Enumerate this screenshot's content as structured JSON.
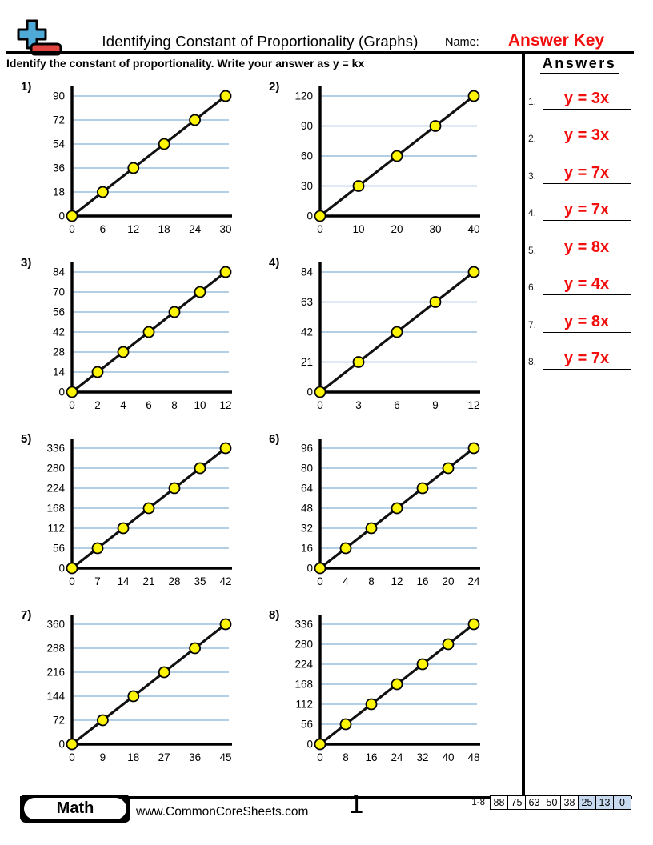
{
  "header": {
    "title": "Identifying Constant of Proportionality (Graphs)",
    "name_label": "Name:",
    "name_value": "Answer Key",
    "instruction": "Identify the constant of proportionality. Write your answer as y = kx"
  },
  "answers_panel": {
    "heading": "Answers",
    "items": [
      {
        "num": "1.",
        "value": "y = 3x"
      },
      {
        "num": "2.",
        "value": "y = 3x"
      },
      {
        "num": "3.",
        "value": "y = 7x"
      },
      {
        "num": "4.",
        "value": "y = 7x"
      },
      {
        "num": "5.",
        "value": "y = 8x"
      },
      {
        "num": "6.",
        "value": "y = 4x"
      },
      {
        "num": "7.",
        "value": "y = 8x"
      },
      {
        "num": "8.",
        "value": "y = 7x"
      }
    ]
  },
  "chart_data": [
    {
      "type": "line",
      "label": "1)",
      "k": 3,
      "x_ticks": [
        0,
        6,
        12,
        18,
        24,
        30
      ],
      "y_ticks": [
        0,
        18,
        36,
        54,
        72,
        90
      ],
      "xlim": [
        0,
        30
      ],
      "ylim": [
        0,
        90
      ],
      "points": [
        [
          0,
          0
        ],
        [
          6,
          18
        ],
        [
          12,
          36
        ],
        [
          18,
          54
        ],
        [
          24,
          72
        ],
        [
          30,
          90
        ]
      ],
      "grid": true
    },
    {
      "type": "line",
      "label": "2)",
      "k": 3,
      "x_ticks": [
        0,
        10,
        20,
        30,
        40
      ],
      "y_ticks": [
        0,
        30,
        60,
        90,
        120
      ],
      "xlim": [
        0,
        40
      ],
      "ylim": [
        0,
        120
      ],
      "points": [
        [
          0,
          0
        ],
        [
          10,
          30
        ],
        [
          20,
          60
        ],
        [
          30,
          90
        ],
        [
          40,
          120
        ]
      ],
      "grid": true
    },
    {
      "type": "line",
      "label": "3)",
      "k": 7,
      "x_ticks": [
        0,
        2,
        4,
        6,
        8,
        10,
        12
      ],
      "y_ticks": [
        0,
        14,
        28,
        42,
        56,
        70,
        84
      ],
      "xlim": [
        0,
        12
      ],
      "ylim": [
        0,
        84
      ],
      "points": [
        [
          0,
          0
        ],
        [
          2,
          14
        ],
        [
          4,
          28
        ],
        [
          6,
          42
        ],
        [
          8,
          56
        ],
        [
          10,
          70
        ],
        [
          12,
          84
        ]
      ],
      "grid": true
    },
    {
      "type": "line",
      "label": "4)",
      "k": 7,
      "x_ticks": [
        0,
        3,
        6,
        9,
        12
      ],
      "y_ticks": [
        0,
        21,
        42,
        63,
        84
      ],
      "xlim": [
        0,
        12
      ],
      "ylim": [
        0,
        84
      ],
      "points": [
        [
          0,
          0
        ],
        [
          3,
          21
        ],
        [
          6,
          42
        ],
        [
          9,
          63
        ],
        [
          12,
          84
        ]
      ],
      "grid": true
    },
    {
      "type": "line",
      "label": "5)",
      "k": 8,
      "x_ticks": [
        0,
        7,
        14,
        21,
        28,
        35,
        42
      ],
      "y_ticks": [
        0,
        56,
        112,
        168,
        224,
        280,
        336
      ],
      "xlim": [
        0,
        42
      ],
      "ylim": [
        0,
        336
      ],
      "points": [
        [
          0,
          0
        ],
        [
          7,
          56
        ],
        [
          14,
          112
        ],
        [
          21,
          168
        ],
        [
          28,
          224
        ],
        [
          35,
          280
        ],
        [
          42,
          336
        ]
      ],
      "grid": true
    },
    {
      "type": "line",
      "label": "6)",
      "k": 4,
      "x_ticks": [
        0,
        4,
        8,
        12,
        16,
        20,
        24
      ],
      "y_ticks": [
        0,
        16,
        32,
        48,
        64,
        80,
        96
      ],
      "xlim": [
        0,
        24
      ],
      "ylim": [
        0,
        96
      ],
      "points": [
        [
          0,
          0
        ],
        [
          4,
          16
        ],
        [
          8,
          32
        ],
        [
          12,
          48
        ],
        [
          16,
          64
        ],
        [
          20,
          80
        ],
        [
          24,
          96
        ]
      ],
      "grid": true
    },
    {
      "type": "line",
      "label": "7)",
      "k": 8,
      "x_ticks": [
        0,
        9,
        18,
        27,
        36,
        45
      ],
      "y_ticks": [
        0,
        72,
        144,
        216,
        288,
        360
      ],
      "xlim": [
        0,
        45
      ],
      "ylim": [
        0,
        360
      ],
      "points": [
        [
          0,
          0
        ],
        [
          9,
          72
        ],
        [
          18,
          144
        ],
        [
          27,
          216
        ],
        [
          36,
          288
        ],
        [
          45,
          360
        ]
      ],
      "grid": true
    },
    {
      "type": "line",
      "label": "8)",
      "k": 7,
      "x_ticks": [
        0,
        8,
        16,
        24,
        32,
        40,
        48
      ],
      "y_ticks": [
        0,
        56,
        112,
        168,
        224,
        280,
        336
      ],
      "xlim": [
        0,
        48
      ],
      "ylim": [
        0,
        336
      ],
      "points": [
        [
          0,
          0
        ],
        [
          8,
          56
        ],
        [
          16,
          112
        ],
        [
          24,
          168
        ],
        [
          32,
          224
        ],
        [
          40,
          280
        ],
        [
          48,
          336
        ]
      ],
      "grid": true
    }
  ],
  "footer": {
    "brand": "Math",
    "website": "www.CommonCoreSheets.com",
    "page_number": "1",
    "score_label": "1-8",
    "score_cells": [
      "88",
      "75",
      "63",
      "50",
      "38",
      "25",
      "13",
      "0"
    ],
    "score_shaded_from_index": 5
  },
  "colors": {
    "answer_red": "#f30e0e",
    "gridline_blue": "#aac7e0",
    "marker_yellow": "#fdf504",
    "line_black": "#111111",
    "logo_blue": "#4faad8",
    "logo_red": "#e2443f",
    "score_cell_blue": "#c8daf0"
  }
}
